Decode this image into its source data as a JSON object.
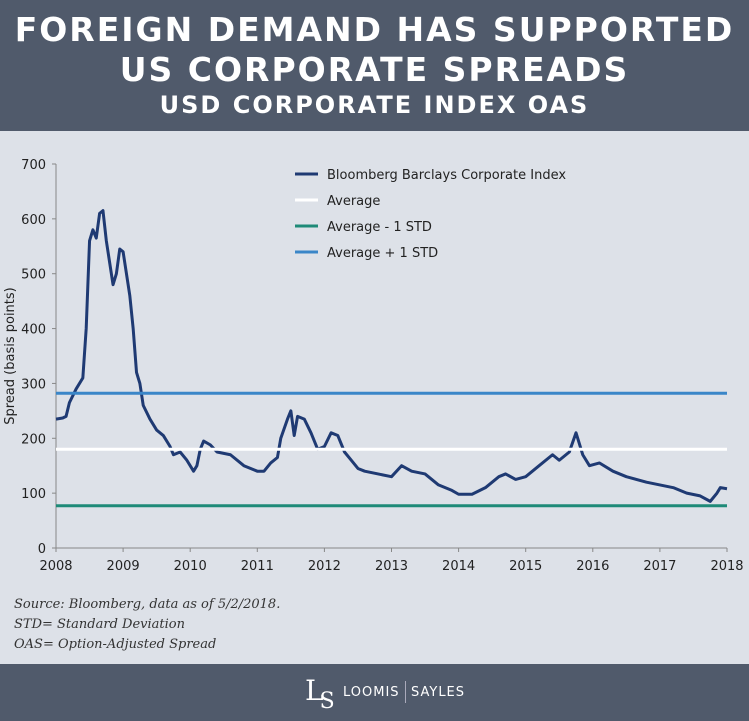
{
  "header": {
    "title_line1": "FOREIGN DEMAND HAS SUPPORTED",
    "title_line2": "US CORPORATE SPREADS",
    "subtitle": "USD CORPORATE INDEX OAS"
  },
  "chart_data": {
    "type": "line",
    "title": "USD CORPORATE INDEX OAS",
    "ylabel": "Spread (basis points)",
    "xlabel": "",
    "xlim": [
      2008,
      2018
    ],
    "ylim": [
      0,
      700
    ],
    "xticks": [
      2008,
      2009,
      2010,
      2011,
      2012,
      2013,
      2014,
      2015,
      2016,
      2017,
      2018
    ],
    "yticks": [
      0,
      100,
      200,
      300,
      400,
      500,
      600,
      700
    ],
    "grid": false,
    "legend": "top-right",
    "series": [
      {
        "name": "Bloomberg Barclays Corporate Index",
        "color": "#1f3a73",
        "points": [
          [
            2008.0,
            235
          ],
          [
            2008.1,
            237
          ],
          [
            2008.15,
            240
          ],
          [
            2008.2,
            265
          ],
          [
            2008.3,
            290
          ],
          [
            2008.4,
            310
          ],
          [
            2008.45,
            400
          ],
          [
            2008.5,
            560
          ],
          [
            2008.55,
            580
          ],
          [
            2008.6,
            565
          ],
          [
            2008.65,
            610
          ],
          [
            2008.7,
            615
          ],
          [
            2008.75,
            560
          ],
          [
            2008.8,
            520
          ],
          [
            2008.85,
            480
          ],
          [
            2008.9,
            500
          ],
          [
            2008.95,
            545
          ],
          [
            2009.0,
            540
          ],
          [
            2009.1,
            460
          ],
          [
            2009.15,
            400
          ],
          [
            2009.2,
            320
          ],
          [
            2009.25,
            300
          ],
          [
            2009.3,
            260
          ],
          [
            2009.4,
            235
          ],
          [
            2009.5,
            215
          ],
          [
            2009.6,
            205
          ],
          [
            2009.7,
            185
          ],
          [
            2009.75,
            170
          ],
          [
            2009.85,
            175
          ],
          [
            2009.95,
            160
          ],
          [
            2010.05,
            140
          ],
          [
            2010.1,
            150
          ],
          [
            2010.15,
            180
          ],
          [
            2010.2,
            195
          ],
          [
            2010.3,
            188
          ],
          [
            2010.4,
            175
          ],
          [
            2010.6,
            170
          ],
          [
            2010.8,
            150
          ],
          [
            2011.0,
            140
          ],
          [
            2011.1,
            140
          ],
          [
            2011.2,
            155
          ],
          [
            2011.3,
            165
          ],
          [
            2011.35,
            200
          ],
          [
            2011.45,
            235
          ],
          [
            2011.5,
            250
          ],
          [
            2011.55,
            205
          ],
          [
            2011.6,
            240
          ],
          [
            2011.7,
            235
          ],
          [
            2011.8,
            210
          ],
          [
            2011.9,
            180
          ],
          [
            2012.0,
            185
          ],
          [
            2012.1,
            210
          ],
          [
            2012.2,
            205
          ],
          [
            2012.3,
            175
          ],
          [
            2012.4,
            160
          ],
          [
            2012.5,
            145
          ],
          [
            2012.6,
            140
          ],
          [
            2012.8,
            135
          ],
          [
            2013.0,
            130
          ],
          [
            2013.15,
            150
          ],
          [
            2013.3,
            140
          ],
          [
            2013.5,
            135
          ],
          [
            2013.7,
            115
          ],
          [
            2013.9,
            105
          ],
          [
            2014.0,
            98
          ],
          [
            2014.2,
            98
          ],
          [
            2014.4,
            110
          ],
          [
            2014.6,
            130
          ],
          [
            2014.7,
            135
          ],
          [
            2014.85,
            125
          ],
          [
            2015.0,
            130
          ],
          [
            2015.2,
            150
          ],
          [
            2015.4,
            170
          ],
          [
            2015.5,
            160
          ],
          [
            2015.65,
            175
          ],
          [
            2015.75,
            210
          ],
          [
            2015.85,
            170
          ],
          [
            2015.95,
            150
          ],
          [
            2016.1,
            155
          ],
          [
            2016.3,
            140
          ],
          [
            2016.5,
            130
          ],
          [
            2016.8,
            120
          ],
          [
            2017.0,
            115
          ],
          [
            2017.2,
            110
          ],
          [
            2017.4,
            100
          ],
          [
            2017.6,
            95
          ],
          [
            2017.75,
            85
          ],
          [
            2017.85,
            100
          ],
          [
            2017.9,
            110
          ],
          [
            2018.0,
            108
          ]
        ]
      },
      {
        "name": "Average",
        "color": "#ffffff",
        "value": 180
      },
      {
        "name": "Average - 1 STD",
        "color": "#1e8a78",
        "value": 77
      },
      {
        "name": "Average + 1 STD",
        "color": "#3a86c8",
        "value": 282
      }
    ]
  },
  "notes": [
    "Source: Bloomberg, data as of  5/2/2018.",
    "STD= Standard Deviation",
    "OAS= Option-Adjusted Spread"
  ],
  "footer": {
    "logo_monogram": "LS",
    "brand_left": "LOOMIS",
    "brand_right": "SAYLES"
  }
}
